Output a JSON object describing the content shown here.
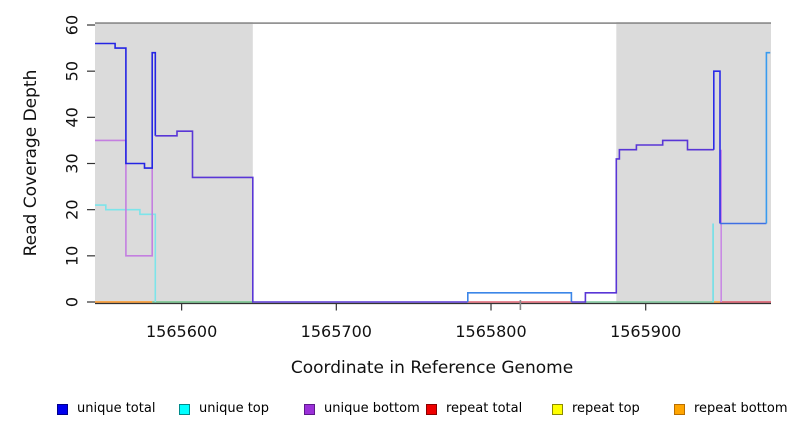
{
  "chart_data": {
    "type": "line",
    "title": "",
    "xlabel": "Coordinate in Reference Genome",
    "ylabel": "Read Coverage Depth",
    "xlim": [
      1565544,
      1565981
    ],
    "ylim": [
      0,
      60.65
    ],
    "x_ticks": [
      1565600,
      1565700,
      1565800,
      1565900
    ],
    "y_ticks": [
      0,
      10,
      20,
      30,
      40,
      50,
      60
    ],
    "grid": false,
    "legend_position": "bottom",
    "shade_color": "#dbdbdb",
    "shaded_regions": [
      [
        1565544,
        1565646
      ],
      [
        1565881,
        1565981
      ]
    ],
    "top_border": {
      "y": 60.4,
      "color": "#949494"
    },
    "axis_color": "#333333",
    "minor_gray_mark_x": 1565819,
    "series": [
      {
        "name": "repeat-bottom",
        "color": "#ff9420",
        "points": [
          [
            1565544,
            0
          ],
          [
            1565581,
            0
          ]
        ]
      },
      {
        "name": "repeat-bottom",
        "color": "#ffa03d",
        "points": [
          [
            1565944,
            0
          ],
          [
            1565948,
            0
          ]
        ]
      },
      {
        "name": "repeat-top",
        "color": "#6fc387",
        "points": [
          [
            1565581,
            0
          ],
          [
            1565646,
            0
          ]
        ]
      },
      {
        "name": "repeat-top",
        "color": "#7cc89a",
        "points": [
          [
            1565861,
            0
          ],
          [
            1565944,
            0
          ]
        ]
      },
      {
        "name": "repeat-total",
        "color": "#e06070",
        "points": [
          [
            1565785,
            0
          ],
          [
            1565852,
            0
          ]
        ]
      },
      {
        "name": "repeat-total",
        "color": "#dd5566",
        "points": [
          [
            1565948,
            0
          ],
          [
            1565981,
            0
          ]
        ]
      },
      {
        "name": "unique-top",
        "color": "#7de4ea",
        "points": [
          [
            1565544,
            21
          ],
          [
            1565551,
            21
          ],
          [
            1565551,
            20
          ],
          [
            1565573,
            20
          ],
          [
            1565573,
            19
          ],
          [
            1565583,
            19
          ],
          [
            1565583,
            0
          ]
        ]
      },
      {
        "name": "unique-top",
        "color": "#6fe0e8",
        "points": [
          [
            1565943.6,
            17
          ],
          [
            1565943.6,
            0
          ]
        ]
      },
      {
        "name": "unique-bottom",
        "color": "#c47fe0",
        "points": [
          [
            1565544,
            35
          ],
          [
            1565564,
            35
          ],
          [
            1565564,
            10
          ],
          [
            1565581,
            10
          ],
          [
            1565581,
            29
          ]
        ]
      },
      {
        "name": "unique-bottom",
        "color": "#c98ae4",
        "points": [
          [
            1565948.8,
            33
          ],
          [
            1565948.8,
            0
          ]
        ]
      },
      {
        "name": "unique-total",
        "color": "#2525e4",
        "points": [
          [
            1565544,
            56
          ],
          [
            1565557,
            56
          ],
          [
            1565557,
            55
          ],
          [
            1565564,
            55
          ],
          [
            1565564,
            30
          ],
          [
            1565576,
            30
          ],
          [
            1565576,
            29
          ],
          [
            1565581,
            29
          ],
          [
            1565581,
            54
          ],
          [
            1565583,
            54
          ],
          [
            1565583,
            36
          ]
        ]
      },
      {
        "name": "unique-total",
        "color": "#5936d6",
        "points": [
          [
            1565583,
            36
          ],
          [
            1565597,
            36
          ],
          [
            1565597,
            37
          ],
          [
            1565607,
            37
          ],
          [
            1565607,
            27
          ],
          [
            1565646,
            27
          ],
          [
            1565646,
            0
          ],
          [
            1565785,
            0
          ]
        ]
      },
      {
        "name": "unique-total",
        "color": "#3c86e8",
        "points": [
          [
            1565785,
            0
          ],
          [
            1565785,
            2
          ],
          [
            1565852,
            2
          ],
          [
            1565852,
            0
          ]
        ]
      },
      {
        "name": "unique-total",
        "color": "#5936d6",
        "points": [
          [
            1565852,
            0
          ],
          [
            1565861,
            0
          ],
          [
            1565861,
            2
          ],
          [
            1565881,
            2
          ],
          [
            1565881,
            31
          ],
          [
            1565883,
            31
          ],
          [
            1565883,
            33
          ],
          [
            1565894,
            33
          ],
          [
            1565894,
            34
          ],
          [
            1565911,
            34
          ],
          [
            1565911,
            35
          ],
          [
            1565927,
            35
          ],
          [
            1565927,
            33
          ],
          [
            1565944,
            33
          ]
        ]
      },
      {
        "name": "unique-total",
        "color": "#2b2be8",
        "points": [
          [
            1565944,
            33
          ],
          [
            1565944,
            50
          ],
          [
            1565948,
            50
          ],
          [
            1565948,
            17
          ]
        ]
      },
      {
        "name": "unique-total",
        "color": "#3e6fe3",
        "points": [
          [
            1565948,
            17
          ],
          [
            1565978,
            17
          ]
        ]
      },
      {
        "name": "unique-total",
        "color": "#389bef",
        "points": [
          [
            1565978,
            17
          ],
          [
            1565978,
            54
          ],
          [
            1565980.5,
            54
          ]
        ]
      }
    ]
  },
  "legend": {
    "items": [
      {
        "label": "unique total",
        "fill": "#0000ee",
        "border": "#00008b"
      },
      {
        "label": "unique top",
        "fill": "#00ffff",
        "border": "#008b8b"
      },
      {
        "label": "unique bottom",
        "fill": "#9b30d9",
        "border": "#5e1a8b"
      },
      {
        "label": "repeat total",
        "fill": "#ee0000",
        "border": "#8b0000"
      },
      {
        "label": "repeat top",
        "fill": "#ffff00",
        "border": "#8b8b00"
      },
      {
        "label": "repeat bottom",
        "fill": "#ffa500",
        "border": "#b86e00"
      }
    ]
  }
}
